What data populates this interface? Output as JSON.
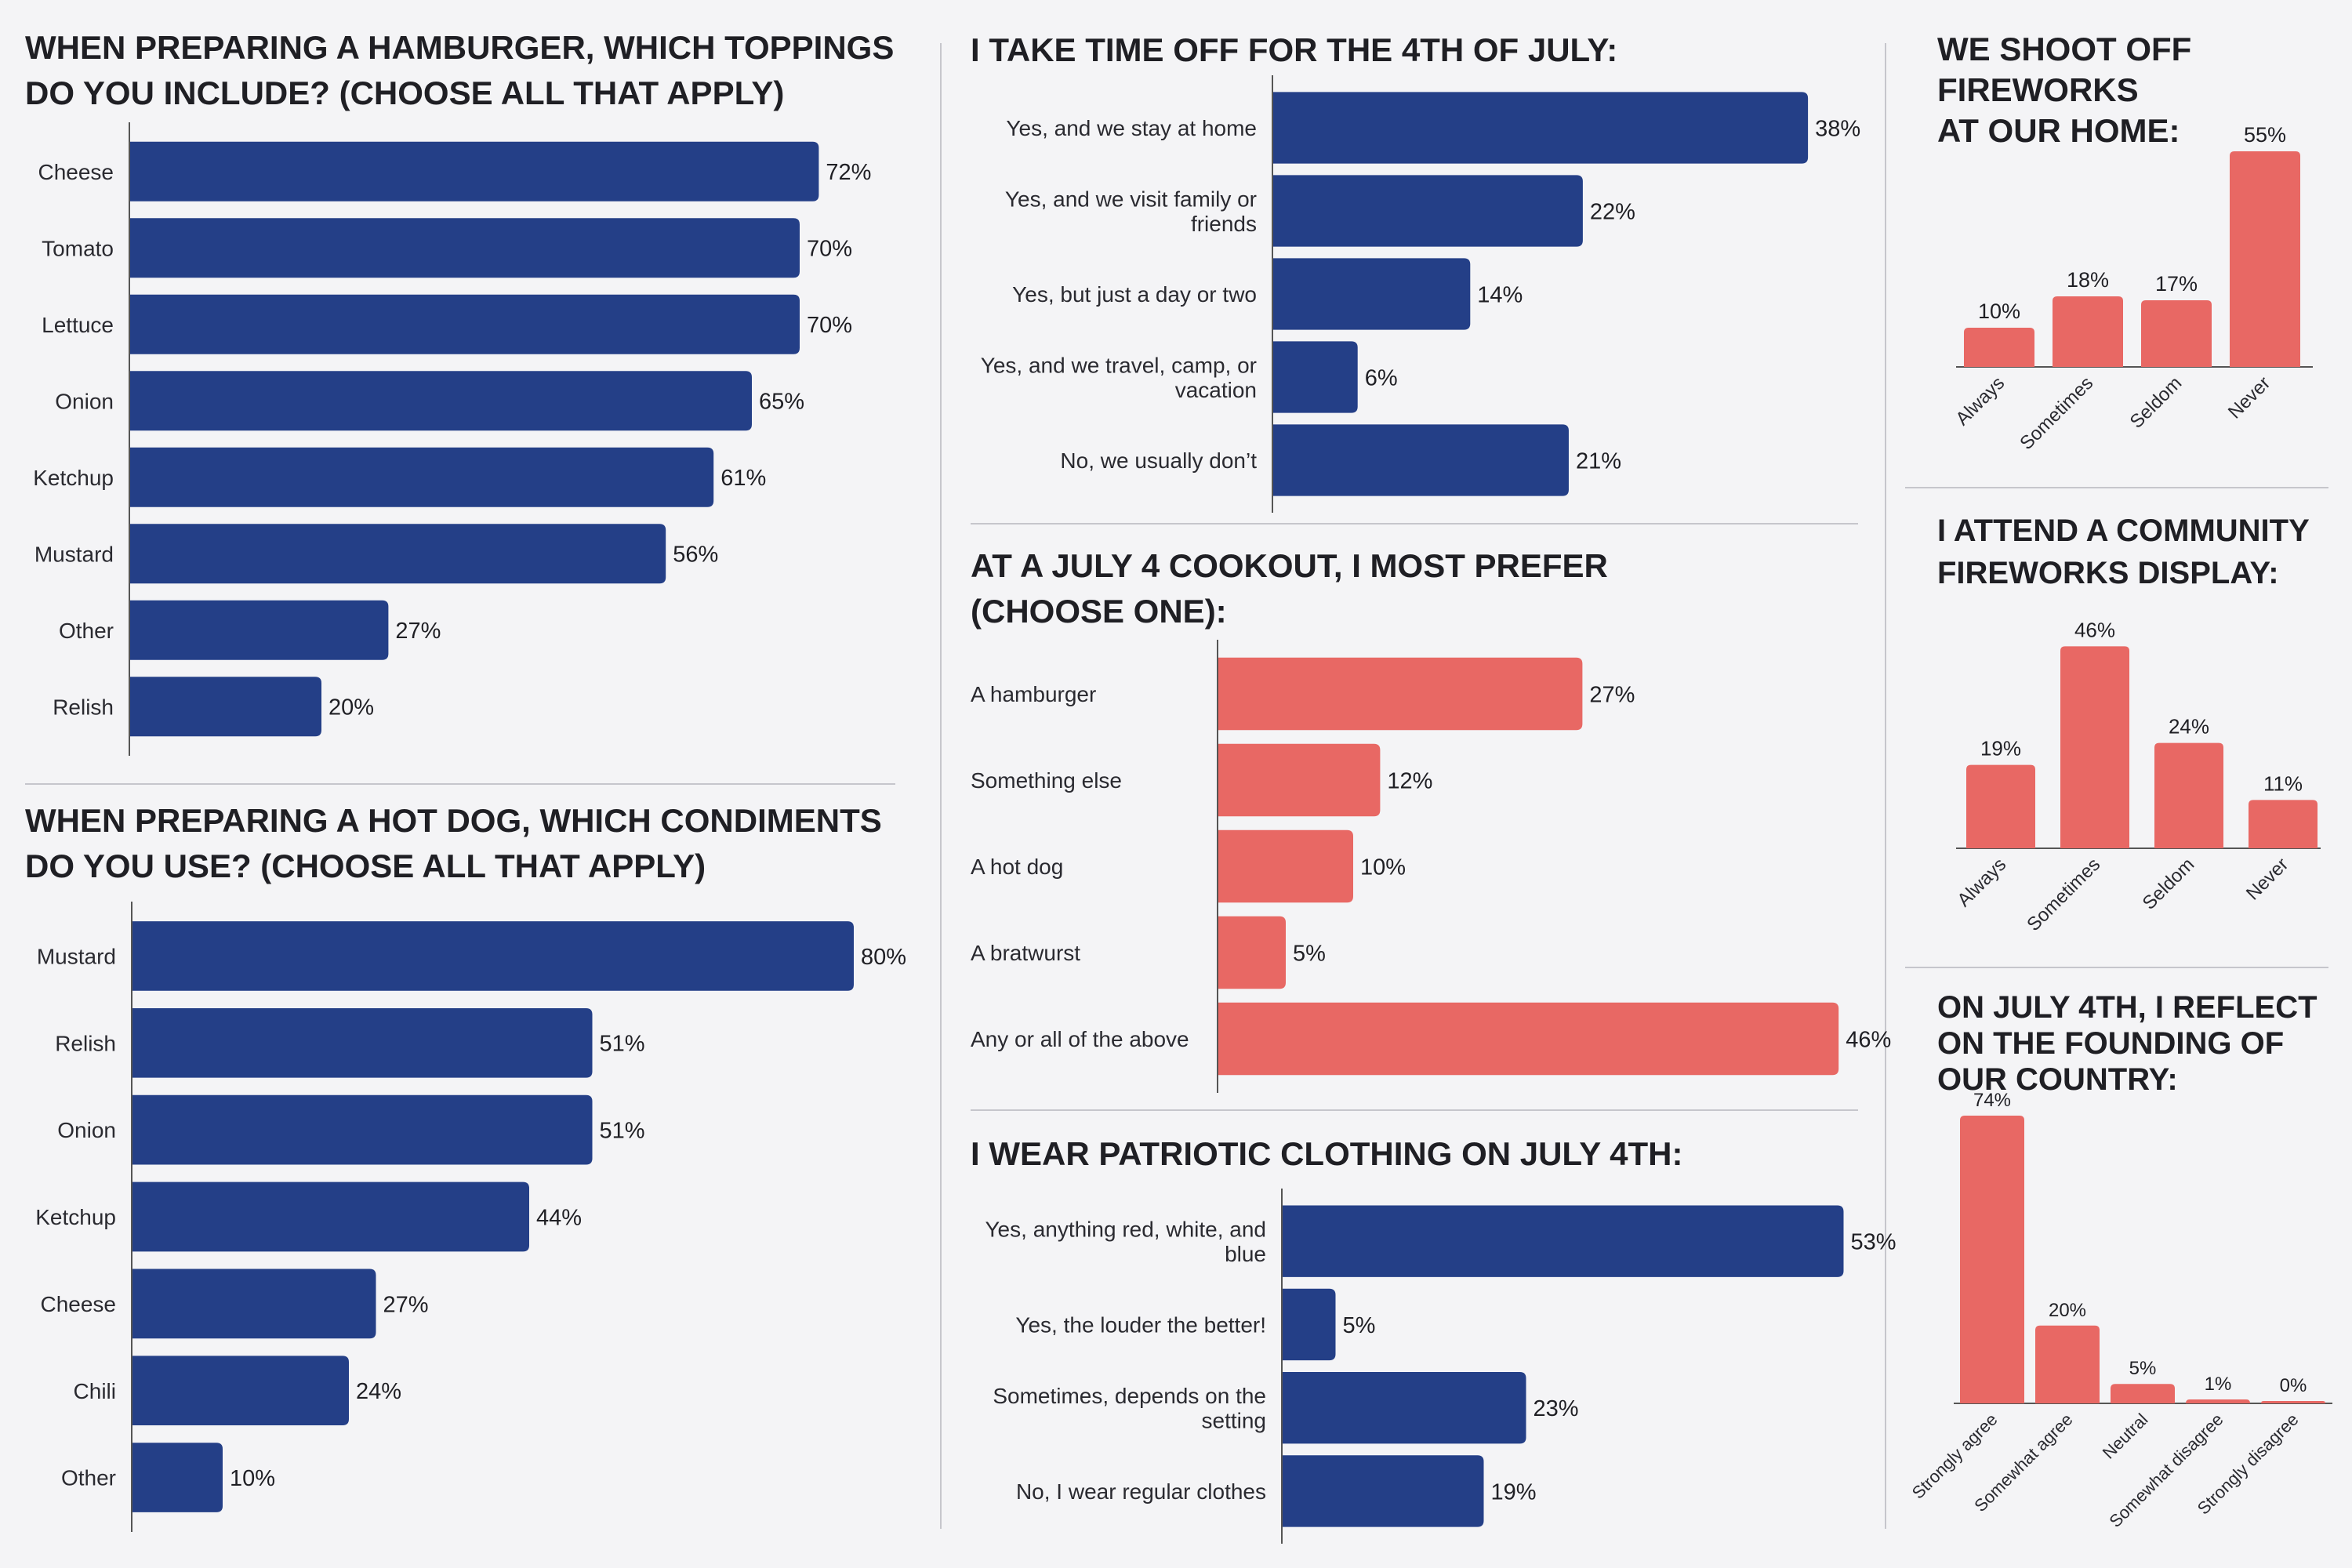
{
  "colors": {
    "navy": "#243f87",
    "coral": "#e86864",
    "divider": "#c6c6cc",
    "axis": "#555555"
  },
  "chart_data": [
    {
      "id": "hamburger-toppings",
      "type": "bar",
      "orientation": "horizontal",
      "title": [
        "WHEN PREPARING A HAMBURGER, WHICH TOPPINGS",
        "DO YOU INCLUDE? (CHOOSE ALL THAT APPLY)"
      ],
      "categories": [
        "Cheese",
        "Tomato",
        "Lettuce",
        "Onion",
        "Ketchup",
        "Mustard",
        "Other",
        "Relish"
      ],
      "values": [
        72,
        70,
        70,
        65,
        61,
        56,
        27,
        20
      ],
      "labels": [
        "72%",
        "70%",
        "70%",
        "65%",
        "61%",
        "56%",
        "27%",
        "20%"
      ],
      "unit": "%",
      "color": "#243f87"
    },
    {
      "id": "hotdog-condiments",
      "type": "bar",
      "orientation": "horizontal",
      "title": [
        "WHEN PREPARING A HOT DOG, WHICH CONDIMENTS",
        "DO YOU USE? (CHOOSE ALL THAT APPLY)"
      ],
      "categories": [
        "Mustard",
        "Relish",
        "Onion",
        "Ketchup",
        "Cheese",
        "Chili",
        "Other"
      ],
      "values": [
        80,
        51,
        51,
        44,
        27,
        24,
        10
      ],
      "labels": [
        "80%",
        "51%",
        "51%",
        "44%",
        "27%",
        "24%",
        "10%"
      ],
      "unit": "%",
      "color": "#243f87"
    },
    {
      "id": "time-off",
      "type": "bar",
      "orientation": "horizontal",
      "title": [
        "I TAKE TIME OFF FOR THE 4TH OF JULY:"
      ],
      "categories": [
        [
          "Yes, and we stay at home"
        ],
        [
          "Yes, and we visit family or",
          "friends"
        ],
        [
          "Yes, but just a day or two"
        ],
        [
          "Yes, and we travel, camp, or",
          "vacation"
        ],
        [
          "No, we usually don’t"
        ]
      ],
      "values": [
        38,
        22,
        14,
        6,
        21
      ],
      "labels": [
        "38%",
        "22%",
        "14%",
        "6%",
        "21%"
      ],
      "unit": "%",
      "color": "#243f87"
    },
    {
      "id": "cookout-preference",
      "type": "bar",
      "orientation": "horizontal",
      "title": [
        "AT A JULY 4 COOKOUT, I MOST PREFER",
        "(CHOOSE ONE):"
      ],
      "categories": [
        "A hamburger",
        "Something else",
        "A hot dog",
        "A bratwurst",
        "Any or all of the above"
      ],
      "values": [
        27,
        12,
        10,
        5,
        46
      ],
      "labels": [
        "27%",
        "12%",
        "10%",
        "5%",
        "46%"
      ],
      "unit": "%",
      "color": "#e86864"
    },
    {
      "id": "patriotic-clothing",
      "type": "bar",
      "orientation": "horizontal",
      "title": [
        "I WEAR PATRIOTIC CLOTHING ON JULY 4TH:"
      ],
      "categories": [
        [
          "Yes, anything red, white, and",
          "blue"
        ],
        [
          "Yes, the louder the better!"
        ],
        [
          "Sometimes, depends on the",
          "setting"
        ],
        [
          "No, I wear regular clothes"
        ]
      ],
      "values": [
        53,
        5,
        23,
        19
      ],
      "labels": [
        "53%",
        "5%",
        "23%",
        "19%"
      ],
      "unit": "%",
      "color": "#243f87"
    },
    {
      "id": "home-fireworks",
      "type": "bar",
      "orientation": "vertical",
      "title": [
        "WE SHOOT OFF",
        "FIREWORKS",
        "AT OUR HOME:"
      ],
      "categories": [
        "Always",
        "Sometimes",
        "Seldom",
        "Never"
      ],
      "values": [
        10,
        18,
        17,
        55
      ],
      "labels": [
        "10%",
        "18%",
        "17%",
        "55%"
      ],
      "unit": "%",
      "color": "#e86864"
    },
    {
      "id": "community-fireworks",
      "type": "bar",
      "orientation": "vertical",
      "title": [
        "I ATTEND A COMMUNITY",
        "FIREWORKS DISPLAY:"
      ],
      "categories": [
        "Always",
        "Sometimes",
        "Seldom",
        "Never"
      ],
      "values": [
        19,
        46,
        24,
        11
      ],
      "labels": [
        "19%",
        "46%",
        "24%",
        "11%"
      ],
      "unit": "%",
      "color": "#e86864"
    },
    {
      "id": "reflect-founding",
      "type": "bar",
      "orientation": "vertical",
      "title": [
        "ON JULY 4TH, I REFLECT",
        "ON THE FOUNDING OF",
        "OUR COUNTRY:"
      ],
      "categories": [
        "Strongly agree",
        "Somewhat agree",
        "Neutral",
        "Somewhat disagree",
        "Strongly disagree"
      ],
      "values": [
        74,
        20,
        5,
        1,
        0
      ],
      "labels": [
        "74%",
        "20%",
        "5%",
        "1%",
        "0%"
      ],
      "unit": "%",
      "color": "#e86864"
    }
  ]
}
